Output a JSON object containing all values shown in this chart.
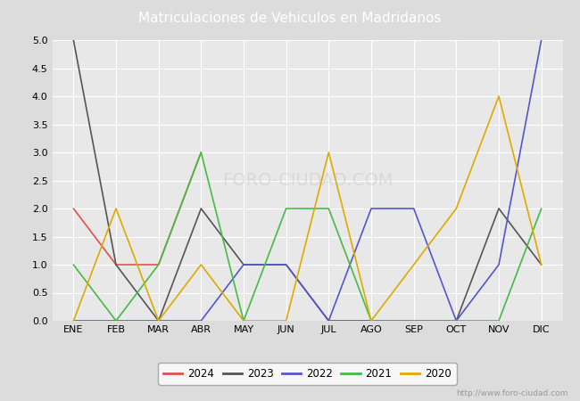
{
  "title": "Matriculaciones de Vehiculos en Madridanos",
  "months": [
    "ENE",
    "FEB",
    "MAR",
    "ABR",
    "MAY",
    "JUN",
    "JUL",
    "AGO",
    "SEP",
    "OCT",
    "NOV",
    "DIC"
  ],
  "series": {
    "2024": {
      "values": [
        2,
        1,
        1,
        3,
        null,
        null,
        null,
        null,
        null,
        null,
        null,
        null
      ],
      "color": "#e05050",
      "linewidth": 1.2
    },
    "2023": {
      "values": [
        5,
        1,
        0,
        2,
        1,
        1,
        0,
        0,
        0,
        0,
        2,
        1
      ],
      "color": "#555555",
      "linewidth": 1.2
    },
    "2022": {
      "values": [
        0,
        0,
        0,
        0,
        1,
        1,
        0,
        2,
        2,
        0,
        1,
        5
      ],
      "color": "#5555cc",
      "linewidth": 1.2
    },
    "2021": {
      "values": [
        1,
        0,
        1,
        3,
        0,
        2,
        2,
        0,
        0,
        0,
        0,
        2
      ],
      "color": "#44bb44",
      "linewidth": 1.2
    },
    "2020": {
      "values": [
        0,
        2,
        0,
        1,
        0,
        0,
        3,
        0,
        1,
        2,
        4,
        1
      ],
      "color": "#ddaa00",
      "linewidth": 1.2
    }
  },
  "ylim": [
    0,
    5.0
  ],
  "yticks": [
    0.0,
    0.5,
    1.0,
    1.5,
    2.0,
    2.5,
    3.0,
    3.5,
    4.0,
    4.5,
    5.0
  ],
  "bg_color": "#dcdcdc",
  "plot_bg_color": "#e8e8e8",
  "title_bg_color": "#4a6fbd",
  "title_color": "#ffffff",
  "title_fontsize": 11,
  "grid_color": "#ffffff",
  "legend_order": [
    "2024",
    "2023",
    "2022",
    "2021",
    "2020"
  ],
  "watermark": "http://www.foro-ciudad.com",
  "fig_width": 6.5,
  "fig_height": 4.5,
  "dpi": 100
}
